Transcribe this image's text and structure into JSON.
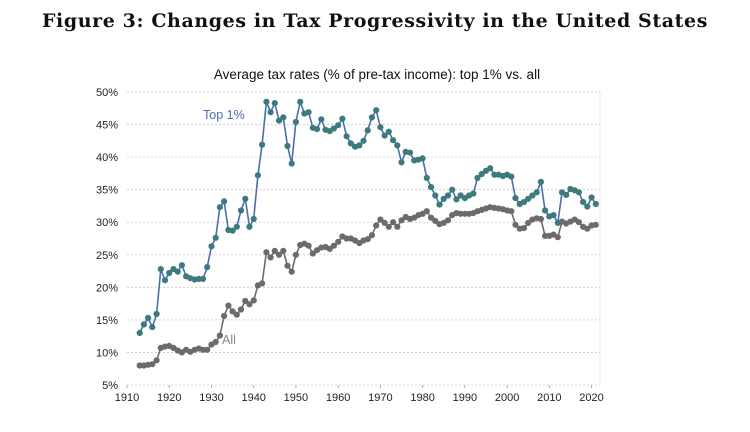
{
  "figure_title": "Figure 3: Changes in Tax Progressivity in the United States",
  "chart_data": {
    "type": "line",
    "title": "Average tax rates (% of pre-tax income): top 1% vs. all",
    "xlabel": "",
    "ylabel": "",
    "xlim": [
      1910,
      2022
    ],
    "ylim": [
      5,
      50
    ],
    "x_ticks": [
      "1910",
      "1920",
      "1930",
      "1940",
      "1950",
      "1960",
      "1970",
      "1980",
      "1990",
      "2000",
      "2010",
      "2020"
    ],
    "y_ticks": [
      "5%",
      "10%",
      "15%",
      "20%",
      "25%",
      "30%",
      "35%",
      "40%",
      "45%",
      "50%"
    ],
    "grid": "horizontal dotted",
    "legend": "inline labels",
    "series": [
      {
        "name": "Top 1%",
        "color": "#4a6fae",
        "marker_color": "#3d7a7e",
        "x": [
          1913,
          1914,
          1915,
          1916,
          1917,
          1918,
          1919,
          1920,
          1921,
          1922,
          1923,
          1924,
          1925,
          1926,
          1927,
          1928,
          1929,
          1930,
          1931,
          1932,
          1933,
          1934,
          1935,
          1936,
          1937,
          1938,
          1939,
          1940,
          1941,
          1942,
          1943,
          1944,
          1945,
          1946,
          1947,
          1948,
          1949,
          1950,
          1951,
          1952,
          1953,
          1954,
          1955,
          1956,
          1957,
          1958,
          1959,
          1960,
          1961,
          1962,
          1963,
          1964,
          1965,
          1966,
          1967,
          1968,
          1969,
          1970,
          1971,
          1972,
          1973,
          1974,
          1975,
          1976,
          1977,
          1978,
          1979,
          1980,
          1981,
          1982,
          1983,
          1984,
          1985,
          1986,
          1987,
          1988,
          1989,
          1990,
          1991,
          1992,
          1993,
          1994,
          1995,
          1996,
          1997,
          1998,
          1999,
          2000,
          2001,
          2002,
          2003,
          2004,
          2005,
          2006,
          2007,
          2008,
          2009,
          2010,
          2011,
          2012,
          2013,
          2014,
          2015,
          2016,
          2017,
          2018,
          2019,
          2020,
          2021
        ],
        "values": [
          13.0,
          14.3,
          15.3,
          13.9,
          15.9,
          22.8,
          21.1,
          22.2,
          22.8,
          22.4,
          23.4,
          21.7,
          21.4,
          21.2,
          21.3,
          21.3,
          23.1,
          26.3,
          27.6,
          32.3,
          33.2,
          28.8,
          28.7,
          29.3,
          31.8,
          33.6,
          29.3,
          30.5,
          37.2,
          41.9,
          48.5,
          46.9,
          48.3,
          45.6,
          46.1,
          41.7,
          39.0,
          45.4,
          48.5,
          46.7,
          46.9,
          44.5,
          44.3,
          45.8,
          44.2,
          44.0,
          44.4,
          44.9,
          45.9,
          43.2,
          42.1,
          41.6,
          41.8,
          42.5,
          44.1,
          46.1,
          47.2,
          44.6,
          43.3,
          43.9,
          42.6,
          41.8,
          39.2,
          40.8,
          40.7,
          39.5,
          39.6,
          39.8,
          36.8,
          35.4,
          34.1,
          32.7,
          33.6,
          34.1,
          35.0,
          33.5,
          34.1,
          33.7,
          34.1,
          34.4,
          36.8,
          37.4,
          37.9,
          38.3,
          37.3,
          37.3,
          37.1,
          37.3,
          37.0,
          33.7,
          32.8,
          33.1,
          33.6,
          34.1,
          34.6,
          36.2,
          31.8,
          30.9,
          31.1,
          29.9,
          34.6,
          34.2,
          35.1,
          34.9,
          34.6,
          33.1,
          32.4,
          33.8,
          32.8
        ]
      },
      {
        "name": "All",
        "color": "#6b6b6b",
        "marker_color": "#6b6b6b",
        "x": [
          1913,
          1914,
          1915,
          1916,
          1917,
          1918,
          1919,
          1920,
          1921,
          1922,
          1923,
          1924,
          1925,
          1926,
          1927,
          1928,
          1929,
          1930,
          1931,
          1932,
          1933,
          1934,
          1935,
          1936,
          1937,
          1938,
          1939,
          1940,
          1941,
          1942,
          1943,
          1944,
          1945,
          1946,
          1947,
          1948,
          1949,
          1950,
          1951,
          1952,
          1953,
          1954,
          1955,
          1956,
          1957,
          1958,
          1959,
          1960,
          1961,
          1962,
          1963,
          1964,
          1965,
          1966,
          1967,
          1968,
          1969,
          1970,
          1971,
          1972,
          1973,
          1974,
          1975,
          1976,
          1977,
          1978,
          1979,
          1980,
          1981,
          1982,
          1983,
          1984,
          1985,
          1986,
          1987,
          1988,
          1989,
          1990,
          1991,
          1992,
          1993,
          1994,
          1995,
          1996,
          1997,
          1998,
          1999,
          2000,
          2001,
          2002,
          2003,
          2004,
          2005,
          2006,
          2007,
          2008,
          2009,
          2010,
          2011,
          2012,
          2013,
          2014,
          2015,
          2016,
          2017,
          2018,
          2019,
          2020,
          2021
        ],
        "values": [
          8.0,
          8.0,
          8.1,
          8.2,
          8.8,
          10.7,
          10.9,
          11.0,
          10.7,
          10.3,
          10.0,
          10.4,
          10.1,
          10.4,
          10.6,
          10.4,
          10.4,
          11.2,
          11.6,
          12.6,
          15.6,
          17.2,
          16.3,
          15.8,
          16.6,
          17.9,
          17.4,
          18.0,
          20.3,
          20.6,
          25.4,
          24.6,
          25.6,
          25.0,
          25.6,
          23.3,
          22.4,
          25.0,
          26.5,
          26.7,
          26.4,
          25.2,
          25.7,
          26.1,
          26.2,
          25.9,
          26.4,
          27.0,
          27.8,
          27.5,
          27.5,
          27.2,
          26.8,
          27.2,
          27.4,
          28.0,
          29.5,
          30.4,
          29.9,
          29.3,
          30.0,
          29.3,
          30.3,
          30.8,
          30.5,
          30.7,
          31.1,
          31.3,
          31.7,
          30.7,
          30.2,
          29.7,
          29.9,
          30.3,
          31.1,
          31.4,
          31.3,
          31.3,
          31.3,
          31.4,
          31.7,
          31.9,
          32.1,
          32.3,
          32.2,
          32.1,
          32.0,
          31.8,
          31.7,
          29.6,
          29.0,
          29.1,
          29.9,
          30.4,
          30.6,
          30.5,
          27.9,
          27.9,
          28.1,
          27.7,
          30.1,
          29.8,
          30.1,
          30.4,
          30.0,
          29.3,
          29.0,
          29.5,
          29.6
        ]
      }
    ],
    "annotations": [
      {
        "text": "Top 1%",
        "series": "Top 1%",
        "color": "#4a6fae"
      },
      {
        "text": "All",
        "series": "All",
        "color": "#888888"
      }
    ]
  }
}
